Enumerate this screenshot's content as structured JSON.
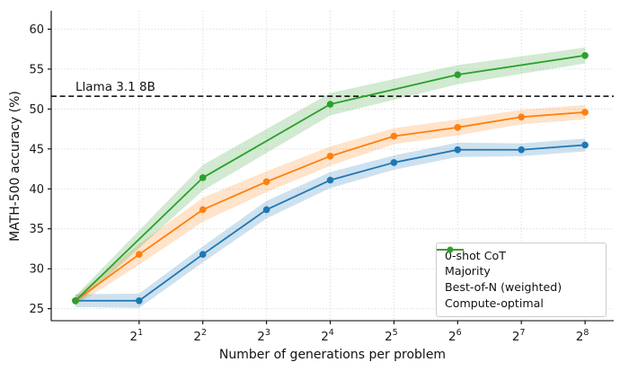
{
  "figure": {
    "annotation": "Llama 3.1 8B",
    "xlabel": "Number of generations per problem",
    "ylabel": "MATH-500 accuracy (%)",
    "background": "#ffffff"
  },
  "legend": {
    "position": "lower right",
    "items": [
      {
        "label": "0-shot CoT",
        "type": "dashed",
        "color": "#000000"
      },
      {
        "label": "Majority",
        "type": "line-marker",
        "color": "#1f77b4"
      },
      {
        "label": "Best-of-N (weighted)",
        "type": "line-marker",
        "color": "#ff7f0e"
      },
      {
        "label": "Compute-optimal",
        "type": "line-marker",
        "color": "#2ca02c"
      }
    ]
  },
  "chart_data": {
    "type": "line",
    "title": "",
    "xlabel": "Number of generations per problem",
    "ylabel": "MATH-500 accuracy (%)",
    "x_scale": "log2",
    "x_tick_exponents": [
      1,
      2,
      3,
      4,
      5,
      6,
      7,
      8
    ],
    "x_tick_base": "2",
    "y_ticks": [
      25,
      30,
      35,
      40,
      45,
      50,
      55,
      60
    ],
    "ylim": [
      23.5,
      62.3
    ],
    "xlim_log2": [
      -0.38,
      8.45
    ],
    "grid": "dotted",
    "grid_color": "#cccccc",
    "baseline": {
      "label": "0-shot CoT",
      "annotation": "Llama 3.1 8B",
      "value": 51.6,
      "style": "dashed",
      "color": "#000000"
    },
    "series": [
      {
        "name": "Majority",
        "color": "#1f77b4",
        "x": [
          1,
          2,
          4,
          8,
          16,
          32,
          64,
          128,
          256
        ],
        "y": [
          26.0,
          26.0,
          31.8,
          37.4,
          41.1,
          43.3,
          44.9,
          44.9,
          45.5
        ],
        "band": [
          0.8,
          0.9,
          1.0,
          1.1,
          1.0,
          0.9,
          0.9,
          0.8,
          0.8
        ]
      },
      {
        "name": "Best-of-N (weighted)",
        "color": "#ff7f0e",
        "x": [
          1,
          2,
          4,
          8,
          16,
          32,
          64,
          128,
          256
        ],
        "y": [
          26.0,
          31.8,
          37.4,
          40.9,
          44.1,
          46.6,
          47.7,
          49.0,
          49.6
        ],
        "band": [
          0.6,
          1.3,
          1.5,
          1.3,
          1.2,
          1.0,
          1.0,
          0.9,
          0.9
        ]
      },
      {
        "name": "Compute-optimal",
        "color": "#2ca02c",
        "x": [
          1,
          4,
          16,
          64,
          256
        ],
        "y": [
          26.0,
          41.4,
          50.6,
          54.3,
          56.7
        ],
        "band": [
          0.6,
          1.6,
          1.4,
          1.2,
          1.0
        ]
      }
    ]
  }
}
